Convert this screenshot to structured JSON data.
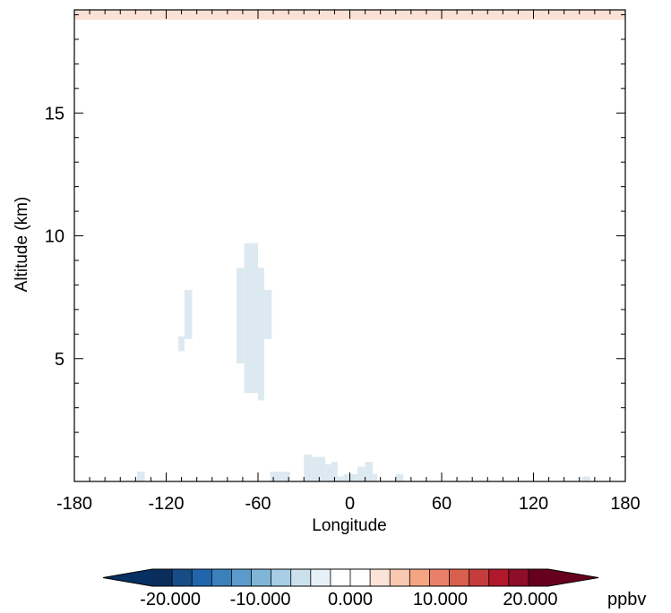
{
  "chart_data": {
    "type": "heatmap",
    "xlabel": "Longitude",
    "ylabel": "Altitude (km)",
    "xlim": [
      -180,
      180
    ],
    "ylim": [
      0,
      19.2
    ],
    "xticks": [
      -180,
      -120,
      -60,
      0,
      60,
      120,
      180
    ],
    "xtick_labels": [
      "-180",
      "-120",
      "-60",
      "0",
      "60",
      "120",
      "180"
    ],
    "yticks": [
      5,
      10,
      15
    ],
    "ytick_labels": [
      "5",
      "10",
      "15"
    ],
    "grid": false,
    "cells": [
      {
        "x0": -180,
        "x1": 180,
        "y0": 18.8,
        "y1": 19.2,
        "color": "#fbe0d5"
      },
      {
        "x0": -108,
        "x1": -103,
        "y0": 5.8,
        "y1": 7.8,
        "color": "#dde9f1"
      },
      {
        "x0": -112,
        "x1": -108,
        "y0": 5.3,
        "y1": 5.9,
        "color": "#dde9f1"
      },
      {
        "x0": -74,
        "x1": -69,
        "y0": 4.8,
        "y1": 8.7,
        "color": "#dde9f1"
      },
      {
        "x0": -69,
        "x1": -60,
        "y0": 3.6,
        "y1": 9.7,
        "color": "#dde9f1"
      },
      {
        "x0": -60,
        "x1": -56,
        "y0": 3.3,
        "y1": 8.7,
        "color": "#dde9f1"
      },
      {
        "x0": -56,
        "x1": -51,
        "y0": 5.8,
        "y1": 7.8,
        "color": "#dde9f1"
      },
      {
        "x0": -139,
        "x1": -134,
        "y0": 0,
        "y1": 0.4,
        "color": "#dde9f1"
      },
      {
        "x0": -52,
        "x1": -39,
        "y0": 0,
        "y1": 0.4,
        "color": "#dde9f1"
      },
      {
        "x0": -30,
        "x1": -25,
        "y0": 0,
        "y1": 1.1,
        "color": "#dde9f1"
      },
      {
        "x0": -25,
        "x1": -16,
        "y0": 0,
        "y1": 1.0,
        "color": "#dde9f1"
      },
      {
        "x0": -16,
        "x1": -12,
        "y0": 0,
        "y1": 0.7,
        "color": "#dde9f1"
      },
      {
        "x0": -12,
        "x1": -8,
        "y0": 0,
        "y1": 0.8,
        "color": "#dde9f1"
      },
      {
        "x0": -8,
        "x1": -4,
        "y0": 0,
        "y1": 0.2,
        "color": "#dde9f1"
      },
      {
        "x0": -4,
        "x1": 5,
        "y0": 0,
        "y1": 0.3,
        "color": "#dde9f1"
      },
      {
        "x0": 5,
        "x1": 10,
        "y0": 0,
        "y1": 0.6,
        "color": "#dde9f1"
      },
      {
        "x0": 10,
        "x1": 15,
        "y0": 0,
        "y1": 0.8,
        "color": "#dde9f1"
      },
      {
        "x0": 15,
        "x1": 18,
        "y0": 0,
        "y1": 0.3,
        "color": "#dde9f1"
      },
      {
        "x0": 30,
        "x1": 35,
        "y0": 0,
        "y1": 0.3,
        "color": "#dde9f1"
      },
      {
        "x0": 152,
        "x1": 157,
        "y0": 0,
        "y1": 0.2,
        "color": "#dde9f1"
      }
    ],
    "colorbar": {
      "unit": "ppbv",
      "range": [
        -22,
        22
      ],
      "extend": "both",
      "tick_values": [
        -20,
        -10,
        0,
        10,
        20
      ],
      "tick_labels": [
        "-20.000",
        "-10.000",
        "0.000",
        "10.000",
        "20.000"
      ],
      "under_color": "#053061",
      "over_color": "#67001f",
      "colors": [
        "#0b2d5b",
        "#164d86",
        "#2166ac",
        "#3a80bb",
        "#5a9bcb",
        "#7fb6d8",
        "#a7cee4",
        "#cbe1ee",
        "#e7f0f6",
        "#ffffff",
        "#ffffff",
        "#fbe4d7",
        "#f9c8b0",
        "#f4a582",
        "#e8806a",
        "#d6604d",
        "#c43c3c",
        "#b2182b",
        "#8e0d27",
        "#67001f"
      ]
    }
  }
}
